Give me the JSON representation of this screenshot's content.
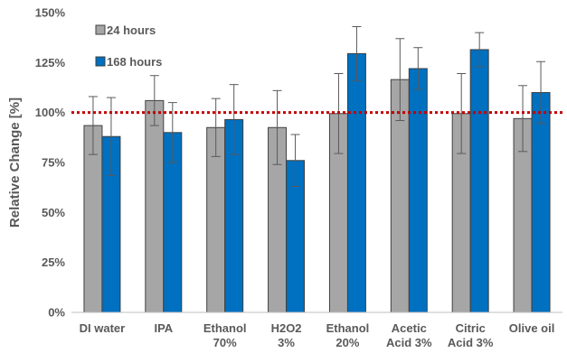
{
  "chart_data": {
    "type": "bar",
    "categories": [
      [
        "DI water"
      ],
      [
        "IPA"
      ],
      [
        "Ethanol",
        "70%"
      ],
      [
        "H2O2",
        "3%"
      ],
      [
        "Ethanol",
        "20%"
      ],
      [
        "Acetic",
        "Acid 3%"
      ],
      [
        "Citric",
        "Acid 3%"
      ],
      [
        "Olive oil"
      ]
    ],
    "series": [
      {
        "name": "24 hours",
        "color": "#a6a6a6",
        "values": [
          93.5,
          106,
          92.5,
          92.5,
          99.5,
          116.5,
          99.5,
          97
        ],
        "err": [
          14.5,
          12.5,
          14.5,
          18.5,
          20,
          20.5,
          20,
          16.5
        ]
      },
      {
        "name": "168 hours",
        "color": "#0070c0",
        "values": [
          88,
          90,
          96.5,
          76,
          129.5,
          122,
          131.5,
          110
        ],
        "err": [
          19.5,
          15,
          17.5,
          13,
          13.5,
          10.5,
          8.5,
          15.5
        ]
      }
    ],
    "ylabel": "Relative Change [%]",
    "ylim": [
      0,
      150
    ],
    "yticks": [
      0,
      25,
      50,
      75,
      100,
      125,
      150
    ],
    "ytick_labels": [
      "0%",
      "25%",
      "50%",
      "75%",
      "100%",
      "125%",
      "150%"
    ],
    "reference_line": {
      "value": 100,
      "color": "#c00000",
      "style": "dotted"
    },
    "grid": false,
    "legend": "top-left"
  }
}
